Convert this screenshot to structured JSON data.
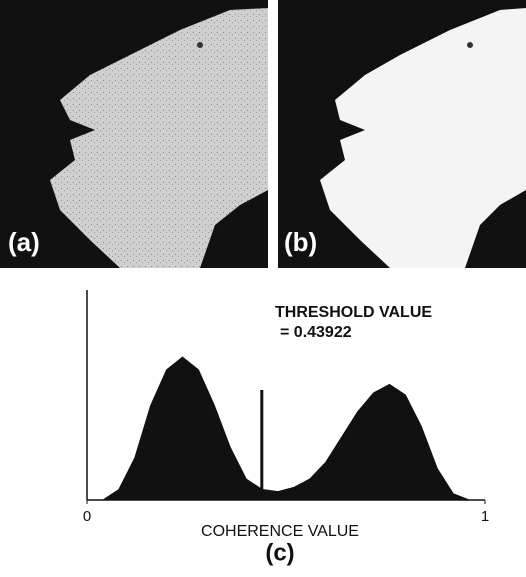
{
  "panels": [
    {
      "label": "(a)"
    },
    {
      "label": "(b)"
    }
  ],
  "chart_data": {
    "type": "area",
    "label": "(c)",
    "xlabel": "COHERENCE VALUE",
    "threshold_title": "THRESHOLD VALUE",
    "threshold": {
      "value": 0.43922,
      "label": "= 0.43922"
    },
    "x": [
      0.04,
      0.08,
      0.12,
      0.16,
      0.2,
      0.24,
      0.28,
      0.32,
      0.36,
      0.4,
      0.44,
      0.48,
      0.52,
      0.56,
      0.6,
      0.64,
      0.68,
      0.72,
      0.76,
      0.8,
      0.84,
      0.88,
      0.92,
      0.96
    ],
    "values": [
      0,
      5,
      20,
      45,
      62,
      68,
      62,
      45,
      25,
      10,
      5,
      4,
      6,
      10,
      18,
      30,
      42,
      51,
      55,
      50,
      35,
      15,
      3,
      0
    ],
    "color": "#111111",
    "xlim": [
      0,
      1
    ],
    "xticks": [
      0,
      1
    ],
    "ylim": [
      0,
      100
    ]
  }
}
